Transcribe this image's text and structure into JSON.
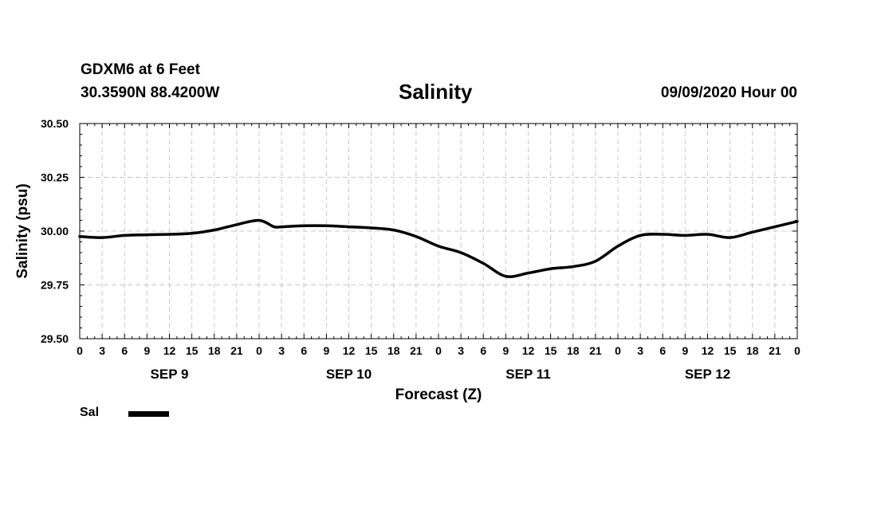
{
  "header": {
    "station": "GDXM6 at 6 Feet",
    "coords": "30.3590N 88.4200W",
    "title": "Salinity",
    "datetime": "09/09/2020 Hour 00"
  },
  "legend": {
    "label": "Sal",
    "color": "#000000"
  },
  "chart_data": {
    "type": "line",
    "title": "Salinity",
    "xlabel": "Forecast (Z)",
    "ylabel": "Salinity (psu)",
    "ylim": [
      29.5,
      30.5
    ],
    "yticks": [
      "30.50",
      "30.25",
      "30.00",
      "29.75",
      "29.50"
    ],
    "xticks": [
      "0",
      "3",
      "6",
      "9",
      "12",
      "15",
      "18",
      "21",
      "0",
      "3",
      "6",
      "9",
      "12",
      "15",
      "18",
      "21",
      "0",
      "3",
      "6",
      "9",
      "12",
      "15",
      "18",
      "21",
      "0",
      "3",
      "6",
      "9",
      "12",
      "15",
      "18",
      "21",
      "0"
    ],
    "day_labels": [
      "SEP 9",
      "SEP 10",
      "SEP 11",
      "SEP 12"
    ],
    "grid": true,
    "legend_position": "bottom-left",
    "series": [
      {
        "name": "Sal",
        "color": "#000000",
        "x": [
          0,
          3,
          6,
          9,
          12,
          15,
          18,
          21,
          24,
          26,
          27,
          30,
          33,
          36,
          39,
          42,
          45,
          48,
          51,
          54,
          57,
          60,
          63,
          66,
          69,
          72,
          75,
          78,
          81,
          84,
          87,
          90,
          93,
          96
        ],
        "values": [
          29.975,
          29.97,
          29.98,
          29.983,
          29.985,
          29.99,
          30.005,
          30.03,
          30.05,
          30.02,
          30.02,
          30.025,
          30.025,
          30.02,
          30.015,
          30.005,
          29.975,
          29.93,
          29.9,
          29.85,
          29.79,
          29.805,
          29.825,
          29.835,
          29.86,
          29.93,
          29.98,
          29.985,
          29.98,
          29.985,
          29.97,
          29.995,
          30.02,
          30.045
        ]
      }
    ]
  }
}
